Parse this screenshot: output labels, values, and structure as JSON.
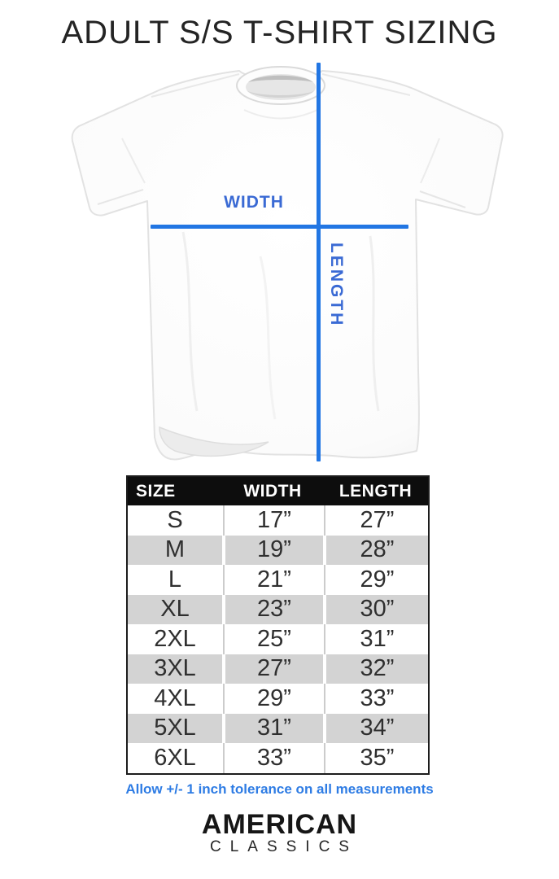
{
  "page": {
    "title": "ADULT S/S T-SHIRT SIZING"
  },
  "diagram": {
    "width_label": "WIDTH",
    "length_label": "LENGTH",
    "tshirt_color": "#fdfdfd"
  },
  "theme": {
    "measure_line_blue": "#2276e3",
    "measure_label_blue": "#3a6ad4",
    "note_blue": "#2e7ce4",
    "alt_row_gray": "#d3d3d3",
    "header_black": "#0d0d0d",
    "header_text_white": "#ffffff"
  },
  "size_table": {
    "headers": [
      "SIZE",
      "WIDTH",
      "LENGTH"
    ],
    "rows": [
      {
        "size": "S",
        "width": "17”",
        "length": "27”"
      },
      {
        "size": "M",
        "width": "19”",
        "length": "28”"
      },
      {
        "size": "L",
        "width": "21”",
        "length": "29”"
      },
      {
        "size": "XL",
        "width": "23”",
        "length": "30”"
      },
      {
        "size": "2XL",
        "width": "25”",
        "length": "31”"
      },
      {
        "size": "3XL",
        "width": "27”",
        "length": "32”"
      },
      {
        "size": "4XL",
        "width": "29”",
        "length": "33”"
      },
      {
        "size": "5XL",
        "width": "31”",
        "length": "34”"
      },
      {
        "size": "6XL",
        "width": "33”",
        "length": "35”"
      }
    ]
  },
  "note": {
    "text": "Allow +/- 1 inch tolerance on all measurements"
  },
  "brand": {
    "line1": "AMERICAN",
    "line2": "CLASSICS"
  },
  "chart_data": {
    "type": "table",
    "title": "ADULT S/S T-SHIRT SIZING",
    "columns": [
      "SIZE",
      "WIDTH",
      "LENGTH"
    ],
    "categories": [
      "S",
      "M",
      "L",
      "XL",
      "2XL",
      "3XL",
      "4XL",
      "5XL",
      "6XL"
    ],
    "series": [
      {
        "name": "WIDTH (inches)",
        "values": [
          17,
          19,
          21,
          23,
          25,
          27,
          29,
          31,
          33
        ]
      },
      {
        "name": "LENGTH (inches)",
        "values": [
          27,
          28,
          29,
          30,
          31,
          32,
          33,
          34,
          35
        ]
      }
    ],
    "annotations": [
      "Allow +/- 1 inch tolerance on all measurements"
    ]
  }
}
